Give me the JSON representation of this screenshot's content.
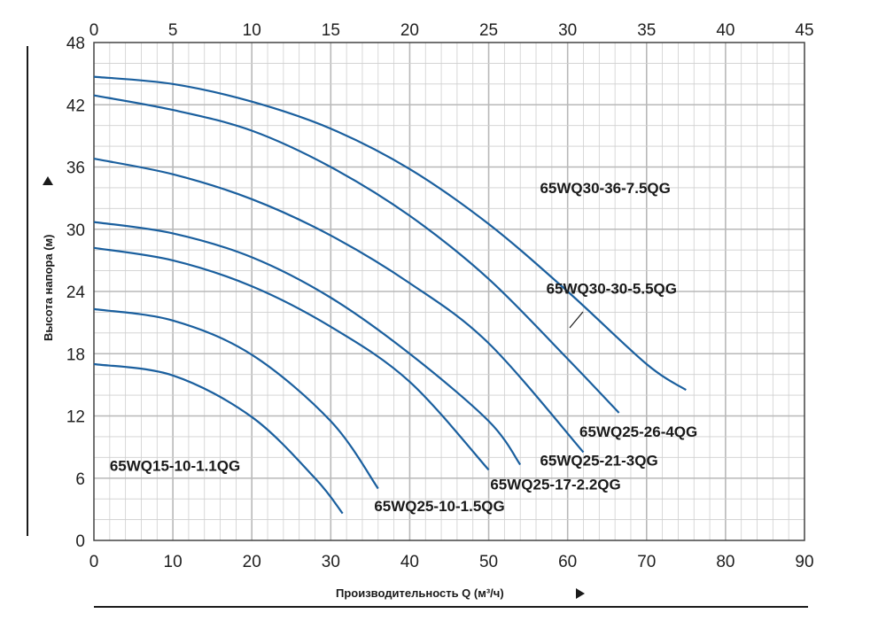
{
  "chart_data": {
    "type": "line",
    "title": "",
    "xlabel": "Производительность Q (м³/ч)",
    "ylabel": "Высота напора (м)",
    "xlim": [
      0,
      90
    ],
    "ylim": [
      0,
      48
    ],
    "x_ticks": [
      0,
      10,
      20,
      30,
      40,
      50,
      60,
      70,
      80,
      90
    ],
    "y_ticks": [
      0,
      6,
      12,
      18,
      24,
      30,
      36,
      42,
      48
    ],
    "top_axis": {
      "xlim": [
        0,
        45
      ],
      "ticks": [
        0,
        5,
        10,
        15,
        20,
        25,
        30,
        35,
        40,
        45
      ]
    },
    "grid": true,
    "line_color": "#1a5f9e",
    "series": [
      {
        "name": "65WQ30-36-7.5QG",
        "x": [
          0,
          10,
          20,
          30,
          40,
          50,
          60,
          70,
          75
        ],
        "y": [
          44.7,
          44,
          42.3,
          39.7,
          35.8,
          30.5,
          24,
          17,
          14.5
        ]
      },
      {
        "name": "65WQ30-30-5.5QG",
        "x": [
          0,
          10,
          20,
          30,
          40,
          50,
          60,
          66.5
        ],
        "y": [
          42.9,
          41.5,
          39.5,
          36,
          31.3,
          25.2,
          17.5,
          12.3
        ]
      },
      {
        "name": "65WQ25-26-4QG",
        "x": [
          0,
          10,
          20,
          30,
          40,
          50,
          62
        ],
        "y": [
          36.8,
          35.3,
          32.9,
          29.4,
          24.8,
          19,
          8.5
        ]
      },
      {
        "name": "65WQ25-21-3QG",
        "x": [
          0,
          10,
          20,
          30,
          40,
          50,
          54
        ],
        "y": [
          30.7,
          29.6,
          27.3,
          23.4,
          18,
          11.5,
          7.3
        ]
      },
      {
        "name": "65WQ25-17-2.2QG",
        "x": [
          0,
          10,
          20,
          30,
          40,
          50
        ],
        "y": [
          28.2,
          27,
          24.5,
          20.6,
          15.3,
          6.8
        ]
      },
      {
        "name": "65WQ25-10-1.5QG",
        "x": [
          0,
          10,
          20,
          30,
          36
        ],
        "y": [
          22.3,
          21.2,
          17.9,
          11.5,
          5
        ]
      },
      {
        "name": "65WQ15-10-1.1QG",
        "x": [
          0,
          10,
          20,
          28,
          31.5
        ],
        "y": [
          17,
          15.9,
          11.9,
          6,
          2.6
        ]
      }
    ],
    "annotations": [
      {
        "text": "65WQ30-36-7.5QG",
        "x": 56.5,
        "y": 33.5
      },
      {
        "text": "65WQ30-30-5.5QG",
        "x": 57.3,
        "y": 23.8
      },
      {
        "text": "65WQ25-26-4QG",
        "x": 61.5,
        "y": 10.0
      },
      {
        "text": "65WQ25-21-3QG",
        "x": 56.5,
        "y": 7.2
      },
      {
        "text": "65WQ25-17-2.2QG",
        "x": 50.2,
        "y": 4.9
      },
      {
        "text": "65WQ25-10-1.5QG",
        "x": 35.5,
        "y": 2.8
      },
      {
        "text": "65WQ15-10-1.1QG",
        "x": 2.0,
        "y": 6.7
      }
    ]
  }
}
